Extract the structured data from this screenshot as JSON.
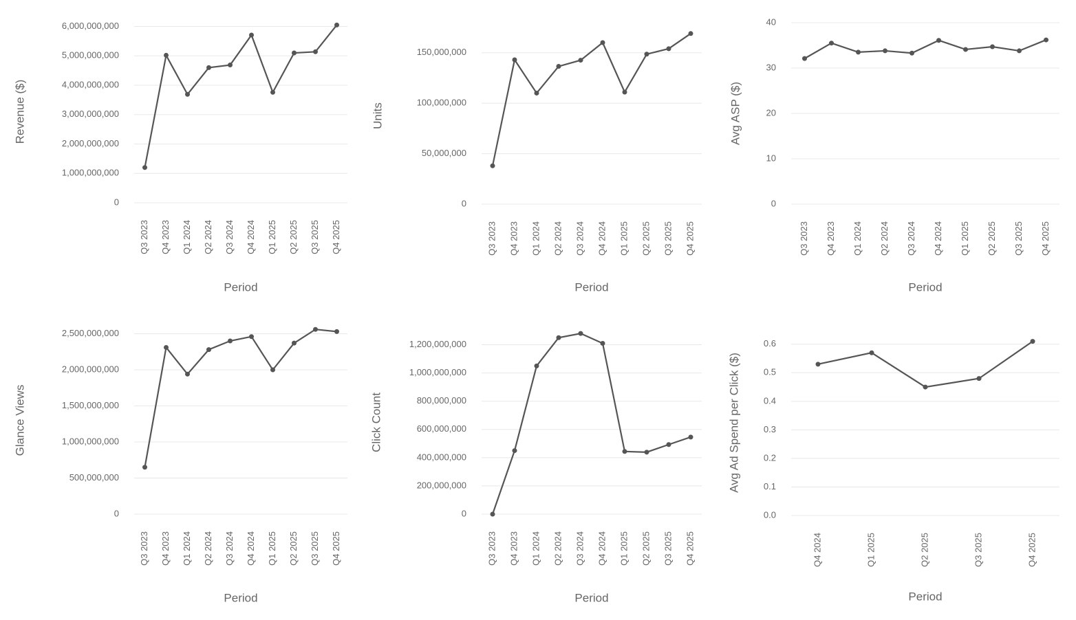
{
  "chart_data": [
    {
      "type": "line",
      "ylabel": "Revenue ($)",
      "xlabel": "Period",
      "categories": [
        "Q3 2023",
        "Q4 2023",
        "Q1 2024",
        "Q2 2024",
        "Q3 2024",
        "Q4 2024",
        "Q1 2025",
        "Q2 2025",
        "Q3 2025",
        "Q4 2025"
      ],
      "values": [
        1200000000,
        5020000000,
        3690000000,
        4600000000,
        4690000000,
        5710000000,
        3760000000,
        5100000000,
        5140000000,
        6050000000
      ],
      "color": "#555555",
      "grid": true,
      "ylim": [
        0,
        6200000000
      ],
      "yticks": [
        0,
        {
          "value": 1000000000,
          "label": "1,000,000,000"
        },
        {
          "value": 2000000000,
          "label": "2,000,000,000"
        },
        {
          "value": 3000000000,
          "label": "3,000,000,000"
        },
        {
          "value": 4000000000,
          "label": "4,000,000,000"
        },
        {
          "value": 5000000000,
          "label": "5,000,000,000"
        },
        {
          "value": 6000000000,
          "label": "6,000,000,000"
        }
      ]
    },
    {
      "type": "line",
      "ylabel": "Units",
      "xlabel": "Period",
      "categories": [
        "Q3 2023",
        "Q4 2023",
        "Q1 2024",
        "Q2 2024",
        "Q3 2024",
        "Q4 2024",
        "Q1 2025",
        "Q2 2025",
        "Q3 2025",
        "Q4 2025"
      ],
      "values": [
        38000000,
        143000000,
        110000000,
        136500000,
        142600000,
        160000000,
        111000000,
        148600000,
        154000000,
        169000000
      ],
      "color": "#555555",
      "grid": true,
      "ylim": [
        0,
        175000000
      ],
      "yticks": [
        0,
        {
          "value": 50000000,
          "label": "50,000,000"
        },
        {
          "value": 100000000,
          "label": "100,000,000"
        },
        {
          "value": 150000000,
          "label": "150,000,000"
        }
      ]
    },
    {
      "type": "line",
      "ylabel": "Avg ASP ($)",
      "xlabel": "Period",
      "categories": [
        "Q3 2023",
        "Q4 2023",
        "Q1 2024",
        "Q2 2024",
        "Q3 2024",
        "Q4 2024",
        "Q1 2025",
        "Q2 2025",
        "Q3 2025",
        "Q4 2025"
      ],
      "values": [
        32.1,
        35.5,
        33.5,
        33.8,
        33.3,
        36.1,
        34.1,
        34.7,
        33.8,
        36.2
      ],
      "color": "#555555",
      "grid": true,
      "ylim": [
        0,
        40
      ],
      "yticks": [
        0,
        10,
        20,
        30,
        40
      ]
    },
    {
      "type": "line",
      "ylabel": "Glance Views",
      "xlabel": "Period",
      "categories": [
        "Q3 2023",
        "Q4 2023",
        "Q1 2024",
        "Q2 2024",
        "Q3 2024",
        "Q4 2024",
        "Q1 2025",
        "Q2 2025",
        "Q3 2025",
        "Q4 2025"
      ],
      "values": [
        650000000,
        2310000000,
        1940000000,
        2280000000,
        2400000000,
        2460000000,
        2000000000,
        2370000000,
        2560000000,
        2530000000
      ],
      "color": "#555555",
      "grid": true,
      "ylim": [
        0,
        2600000000
      ],
      "yticks": [
        0,
        {
          "value": 500000000,
          "label": "500,000,000"
        },
        {
          "value": 1000000000,
          "label": "1,000,000,000"
        },
        {
          "value": 1500000000,
          "label": "1,500,000,000"
        },
        {
          "value": 2000000000,
          "label": "2,000,000,000"
        },
        {
          "value": 2500000000,
          "label": "2,500,000,000"
        }
      ]
    },
    {
      "type": "line",
      "ylabel": "Click Count",
      "xlabel": "Period",
      "categories": [
        "Q3 2023",
        "Q4 2023",
        "Q1 2024",
        "Q2 2024",
        "Q3 2024",
        "Q4 2024",
        "Q1 2025",
        "Q2 2025",
        "Q3 2025",
        "Q4 2025"
      ],
      "values": [
        0,
        450000000,
        1050000000,
        1250000000,
        1280000000,
        1210000000,
        444000000,
        439000000,
        493000000,
        546000000
      ],
      "color": "#555555",
      "grid": true,
      "ylim": [
        0,
        1300000000
      ],
      "yticks": [
        0,
        {
          "value": 200000000,
          "label": "200,000,000"
        },
        {
          "value": 400000000,
          "label": "400,000,000"
        },
        {
          "value": 600000000,
          "label": "600,000,000"
        },
        {
          "value": 800000000,
          "label": "800,000,000"
        },
        {
          "value": 1000000000,
          "label": "1,000,000,000"
        },
        {
          "value": 1200000000,
          "label": "1,200,000,000"
        }
      ]
    },
    {
      "type": "line",
      "ylabel": "Avg Ad Spend per Click ($)",
      "xlabel": "Period",
      "categories": [
        "Q4 2024",
        "Q1 2025",
        "Q2 2025",
        "Q3 2025",
        "Q4 2025"
      ],
      "values": [
        0.53,
        0.57,
        0.45,
        0.48,
        0.61
      ],
      "color": "#555555",
      "grid": true,
      "ylim": [
        0,
        0.65
      ],
      "yticks": [
        {
          "value": 0,
          "label": "0.0"
        },
        0.1,
        0.2,
        0.3,
        0.4,
        0.5,
        0.6
      ]
    }
  ]
}
